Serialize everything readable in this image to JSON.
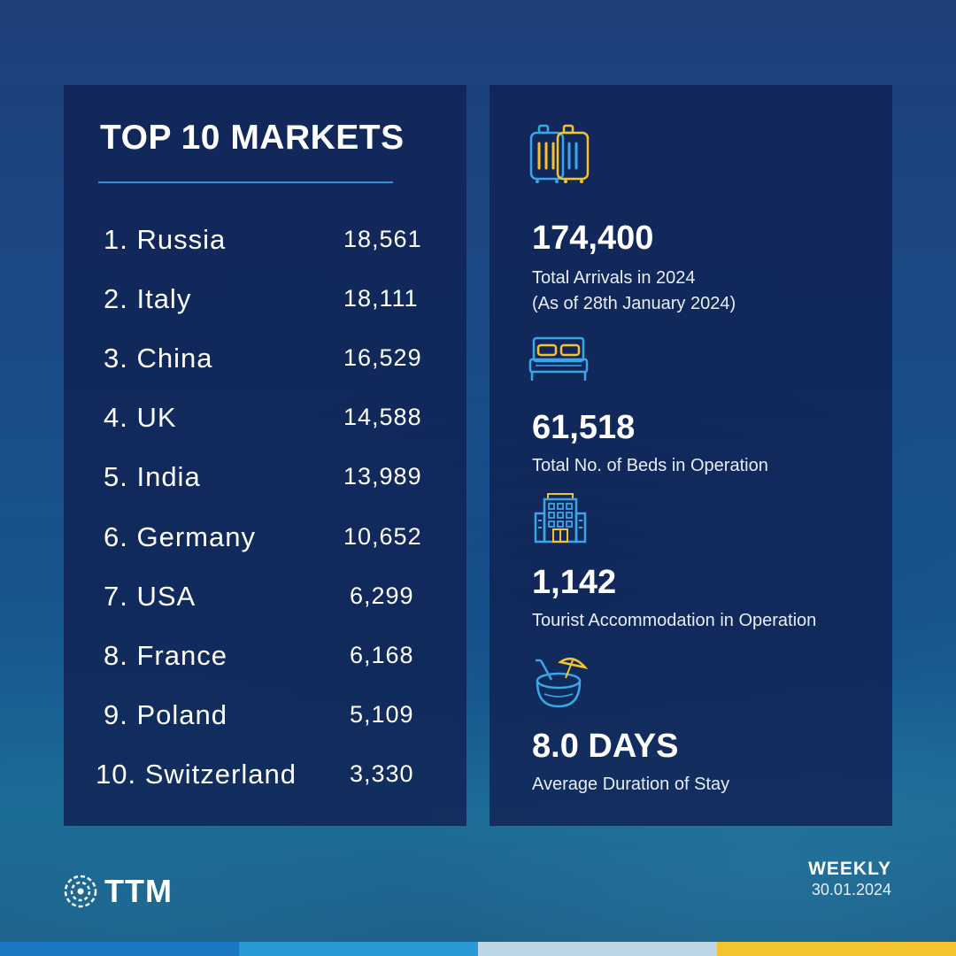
{
  "markets": {
    "title": "TOP 10 MARKETS",
    "items": [
      {
        "name": "1. Russia",
        "value": "18,561"
      },
      {
        "name": "2. Italy",
        "value": "18,111"
      },
      {
        "name": "3. China",
        "value": "16,529"
      },
      {
        "name": "4. UK",
        "value": "14,588"
      },
      {
        "name": "5. India",
        "value": "13,989"
      },
      {
        "name": "6. Germany",
        "value": "10,652"
      },
      {
        "name": "7. USA",
        "value": "6,299"
      },
      {
        "name": "8. France",
        "value": "6,168"
      },
      {
        "name": "9. Poland",
        "value": "5,109"
      },
      {
        "name": "10. Switzerland",
        "value": "3,330"
      }
    ]
  },
  "stats": [
    {
      "icon": "luggage-icon",
      "value": "174,400",
      "label_line1": "Total Arrivals in 2024",
      "label_line2": "(As of 28th January 2024)"
    },
    {
      "icon": "bed-icon",
      "value": "61,518",
      "label_line1": "Total No. of Beds in Operation"
    },
    {
      "icon": "hotel-building-icon",
      "value": "1,142",
      "label_line1": "Tourist Accommodation in Operation"
    },
    {
      "icon": "coconut-drink-icon",
      "value": "8.0 DAYS",
      "label_line1": "Average Duration of Stay"
    }
  ],
  "footer": {
    "logo_text": "TTM",
    "logo_icon": "ttm-logo-icon",
    "frequency": "WEEKLY",
    "date": "30.01.2024"
  },
  "colors": {
    "icon_blue": "#3aa6e8",
    "icon_yellow": "#f4c430",
    "panel": "#102152",
    "bar": [
      "#1a78c2",
      "#2a9ad6",
      "#bcd6e6",
      "#f4c430"
    ]
  }
}
